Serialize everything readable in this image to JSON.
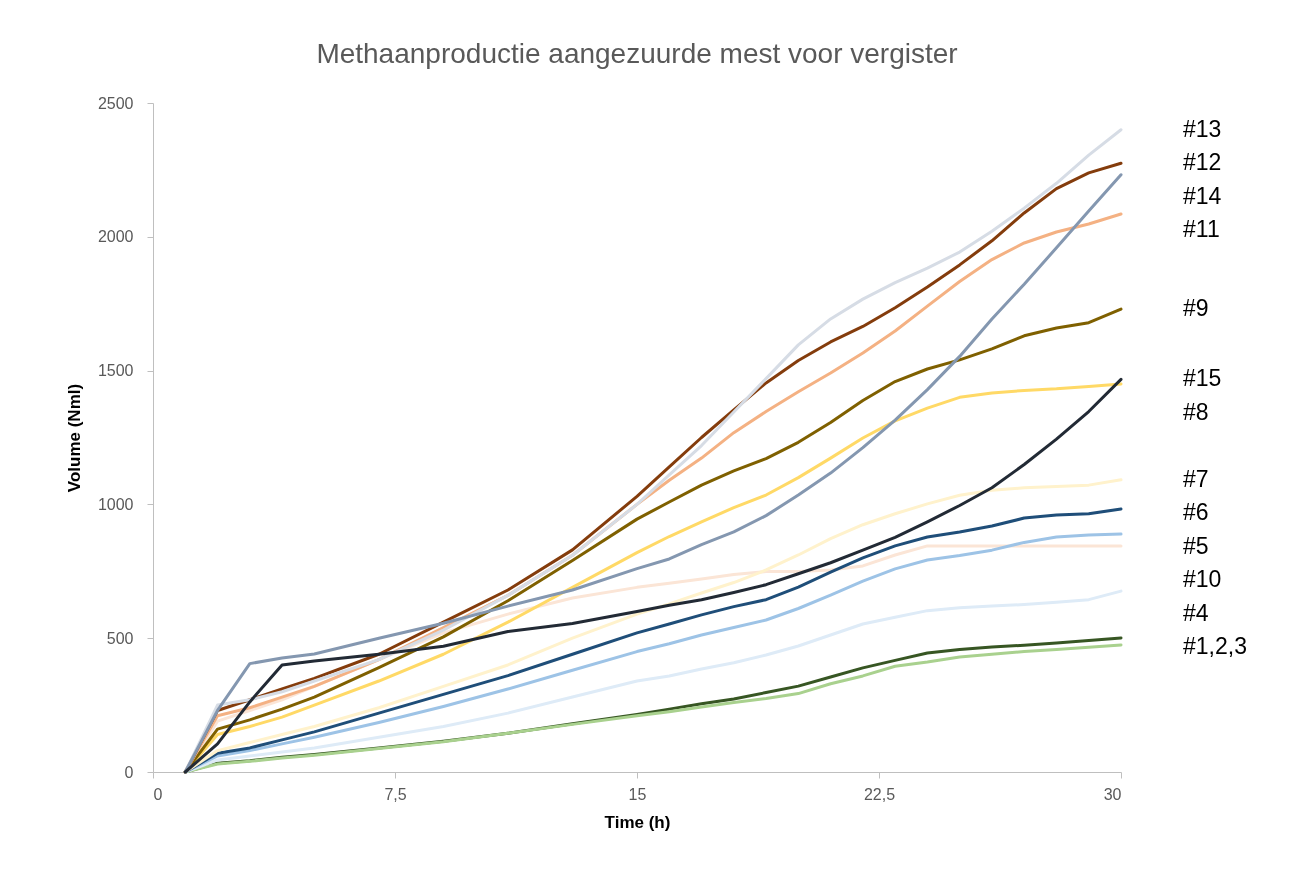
{
  "chart_data": {
    "type": "line",
    "title": "Methaanproductie aangezuurde mest voor vergister",
    "xlabel": "Time (h)",
    "ylabel": "Volume (Nml)",
    "x": [
      1,
      2,
      3,
      4,
      5,
      7,
      9,
      11,
      13,
      15,
      16,
      17,
      18,
      19,
      20,
      21,
      22,
      23,
      24,
      25,
      26,
      27,
      28,
      29,
      30
    ],
    "xlim": [
      0,
      30
    ],
    "xticks": [
      0,
      {
        "value": 7.5,
        "label": "7,5"
      },
      15,
      {
        "value": 22.5,
        "label": "22,5"
      },
      30
    ],
    "ylim": [
      0,
      2500
    ],
    "yticks": [
      0,
      500,
      1000,
      1500,
      2000,
      2500
    ],
    "grid": false,
    "line_style": "solid",
    "marker": "none",
    "series": [
      {
        "name": "#1,2,3",
        "color": "#375623",
        "values": [
          0,
          33,
          42,
          55,
          65,
          90,
          115,
          145,
          180,
          215,
          235,
          255,
          273,
          297,
          321,
          355,
          389,
          417,
          445,
          458,
          467,
          474,
          482,
          491,
          501
        ]
      },
      {
        "color": "#a9d18e",
        "values": [
          0,
          30,
          40,
          52,
          63,
          88,
          113,
          145,
          178,
          210,
          225,
          243,
          260,
          275,
          293,
          330,
          359,
          395,
          411,
          430,
          440,
          450,
          458,
          466,
          475
        ]
      },
      {
        "name": "#4",
        "color": "#deebf7",
        "values": [
          0,
          45,
          60,
          75,
          90,
          130,
          170,
          220,
          280,
          340,
          359,
          385,
          408,
          437,
          471,
          512,
          553,
          578,
          603,
          614,
          620,
          626,
          634,
          644,
          676
        ]
      },
      {
        "name": "#10",
        "color": "#fbe5d6",
        "values": [
          0,
          190,
          230,
          270,
          320,
          420,
          520,
          590,
          650,
          690,
          705,
          721,
          738,
          749,
          749,
          755,
          770,
          811,
          845,
          845,
          845,
          845,
          845,
          845,
          845
        ]
      },
      {
        "name": "#5",
        "color": "#9dc3e6",
        "values": [
          0,
          60,
          80,
          105,
          130,
          185,
          245,
          310,
          380,
          450,
          479,
          512,
          540,
          568,
          611,
          661,
          713,
          759,
          792,
          809,
          829,
          858,
          878,
          886,
          889
        ]
      },
      {
        "name": "#6",
        "color": "#1f4e79",
        "values": [
          0,
          70,
          90,
          120,
          150,
          220,
          290,
          360,
          440,
          520,
          553,
          587,
          618,
          644,
          691,
          747,
          800,
          845,
          878,
          897,
          919,
          949,
          960,
          965,
          983
        ]
      },
      {
        "name": "#7",
        "color": "#fff2cc",
        "values": [
          0,
          80,
          110,
          140,
          170,
          240,
          320,
          400,
          500,
          590,
          628,
          669,
          708,
          755,
          811,
          872,
          924,
          965,
          1002,
          1034,
          1053,
          1062,
          1067,
          1072,
          1092
        ]
      },
      {
        "name": "#8",
        "color": "#ffd966",
        "values": [
          0,
          140,
          170,
          205,
          250,
          340,
          440,
          560,
          690,
          820,
          880,
          935,
          988,
          1035,
          1100,
          1173,
          1248,
          1312,
          1360,
          1400,
          1416,
          1426,
          1432,
          1441,
          1450
        ]
      },
      {
        "name": "#9",
        "color": "#7f6000",
        "values": [
          0,
          160,
          195,
          235,
          280,
          390,
          505,
          640,
          790,
          945,
          1009,
          1072,
          1125,
          1171,
          1232,
          1306,
          1388,
          1459,
          1506,
          1540,
          1581,
          1630,
          1659,
          1679,
          1730
        ]
      },
      {
        "name": "#11",
        "color": "#f4b183",
        "values": [
          0,
          210,
          240,
          280,
          320,
          420,
          540,
          660,
          810,
          1000,
          1090,
          1173,
          1268,
          1347,
          1421,
          1491,
          1566,
          1648,
          1741,
          1833,
          1915,
          1977,
          2018,
          2048,
          2085
        ]
      },
      {
        "name": "#12",
        "color": "#843c0c",
        "values": [
          0,
          230,
          270,
          310,
          350,
          440,
          560,
          680,
          830,
          1030,
          1140,
          1250,
          1353,
          1454,
          1538,
          1607,
          1665,
          1735,
          1812,
          1895,
          1985,
          2089,
          2180,
          2239,
          2275
        ]
      },
      {
        "name": "#13",
        "color": "#d6dce5",
        "values": [
          0,
          250,
          270,
          300,
          340,
          420,
          530,
          660,
          810,
          1000,
          1110,
          1220,
          1345,
          1470,
          1596,
          1693,
          1767,
          1829,
          1883,
          1943,
          2021,
          2107,
          2200,
          2305,
          2400
        ]
      },
      {
        "name": "#14",
        "color": "#8497b0",
        "values": [
          0,
          230,
          405,
          426,
          441,
          500,
          556,
          620,
          680,
          760,
          796,
          850,
          897,
          958,
          1035,
          1117,
          1212,
          1315,
          1429,
          1553,
          1693,
          1823,
          1959,
          2096,
          2232
        ]
      },
      {
        "name": "#15",
        "color": "#222a35",
        "values": [
          0,
          105,
          262,
          400,
          415,
          440,
          470,
          525,
          555,
          600,
          623,
          644,
          671,
          700,
          741,
          782,
          829,
          877,
          935,
          996,
          1062,
          1149,
          1244,
          1347,
          1467
        ]
      }
    ]
  }
}
